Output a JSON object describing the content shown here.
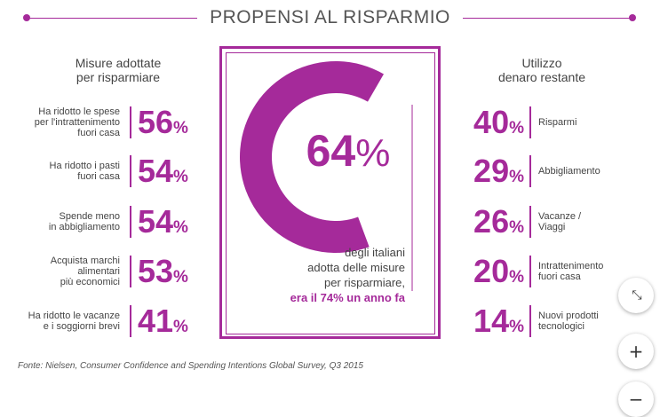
{
  "title": "PROPENSI AL RISPARMIO",
  "left_header": [
    "Misure adottate",
    "per risparmiare"
  ],
  "right_header": [
    "Utilizzo",
    "denaro restante"
  ],
  "center": {
    "main_value": "64",
    "main_pct": "%",
    "line1": "degli italiani",
    "line2": "adotta delle misure",
    "line3": "per risparmiare,",
    "line4": "era il 74% un anno fa"
  },
  "source": "Fonte: Nielsen, Consumer Confidence and Spending Intentions Global Survey, Q3 2015",
  "colors": {
    "accent": "#a52a9a",
    "text": "#444444"
  },
  "controls": {
    "collapse_icon": "collapse-icon",
    "zoom_in_icon": "plus-icon",
    "zoom_out_icon": "minus-icon"
  },
  "chart_data": [
    {
      "type": "table",
      "title": "Misure adottate per risparmiare",
      "categories": [
        "Ha ridotto le spese per l'intrattenimento fuori casa",
        "Ha ridotto i pasti fuori casa",
        "Spende meno in abbigliamento",
        "Acquista marchi alimentari più economici",
        "Ha ridotto le vacanze e i soggiorni brevi"
      ],
      "labels": [
        [
          "Ha ridotto le spese",
          "per l'intrattenimento",
          "fuori casa"
        ],
        [
          "Ha ridotto i pasti",
          "fuori casa"
        ],
        [
          "Spende meno",
          "in abbigliamento"
        ],
        [
          "Acquista marchi",
          "alimentari",
          "più economici"
        ],
        [
          "Ha ridotto le vacanze",
          "e i soggiorni brevi"
        ]
      ],
      "values": [
        56,
        54,
        54,
        53,
        41
      ],
      "unit": "%"
    },
    {
      "type": "pie",
      "title": "",
      "value": 64,
      "unit": "%"
    },
    {
      "type": "table",
      "title": "Utilizzo denaro restante",
      "categories": [
        "Risparmi",
        "Abbigliamento",
        "Vacanze / Viaggi",
        "Intrattenimento fuori casa",
        "Nuovi prodotti tecnologici"
      ],
      "labels": [
        [
          "Risparmi"
        ],
        [
          "Abbigliamento"
        ],
        [
          "Vacanze /",
          "Viaggi"
        ],
        [
          "Intrattenimento",
          "fuori casa"
        ],
        [
          "Nuovi prodotti",
          "tecnologici"
        ]
      ],
      "values": [
        40,
        29,
        26,
        20,
        14
      ],
      "unit": "%"
    }
  ]
}
